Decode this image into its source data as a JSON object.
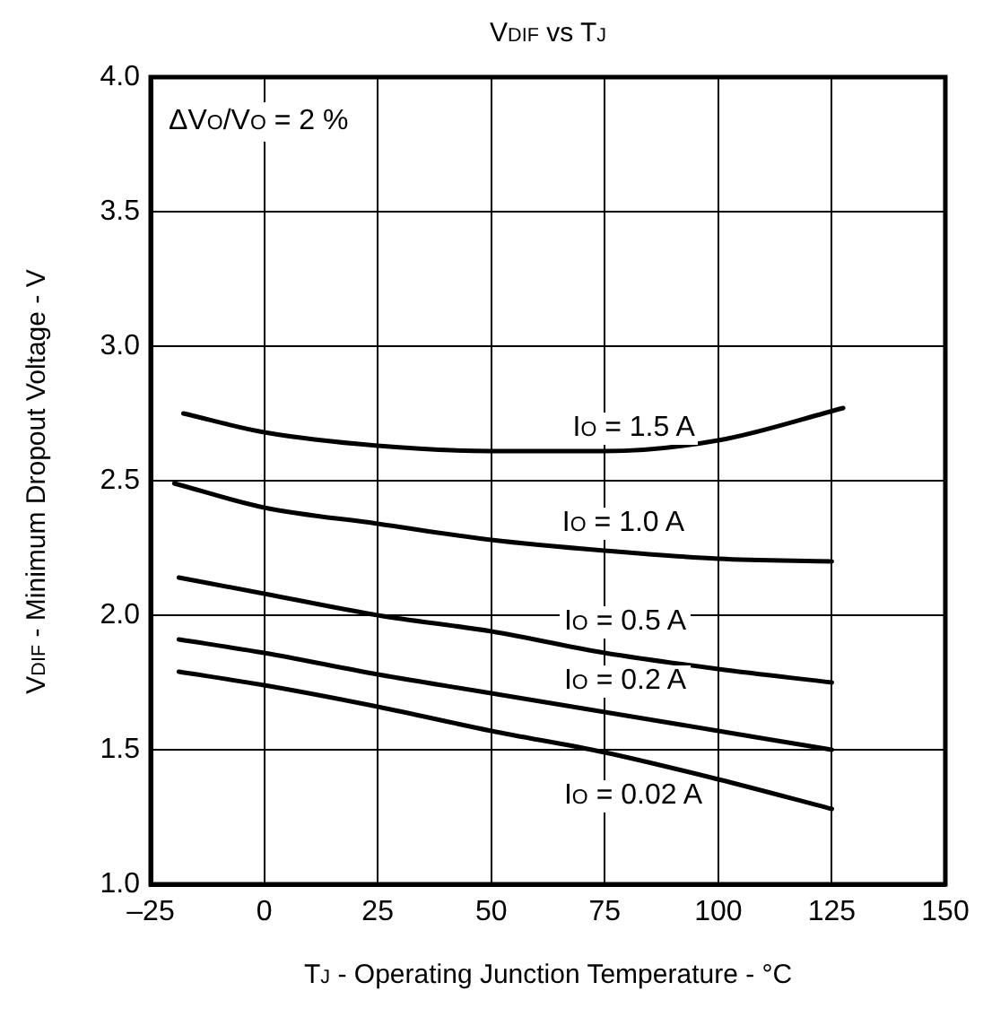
{
  "chart_data": {
    "type": "line",
    "title": "V$_{DIF}$ vs T$_{J}$",
    "xlabel": "T$_{J}$ - Operating Junction Temperature - °C",
    "ylabel": "V$_{DIF}$ - Minimum Dropout Voltage - V",
    "annotations": [
      "ΔV$_{O}$/V$_{O}$ = 2 %"
    ],
    "xlim": [
      -25,
      150
    ],
    "xticks": [
      {
        "value": -25,
        "label": "–25"
      },
      0,
      25,
      50,
      75,
      100,
      125,
      150
    ],
    "ylim": [
      1,
      4
    ],
    "yticks": [
      {
        "value": 1,
        "label": "1.0"
      },
      {
        "value": 1.5,
        "label": "1.5"
      },
      {
        "value": 2,
        "label": "2.0"
      },
      {
        "value": 2.5,
        "label": "2.5"
      },
      {
        "value": 3,
        "label": "3.0"
      },
      {
        "value": 3.5,
        "label": "3.5"
      },
      {
        "value": 4,
        "label": "4.0"
      }
    ],
    "grid": true,
    "legend": false,
    "marker": "none",
    "line_style": "solid",
    "series": [
      {
        "name": "I$_{O}$ = 1.5 A",
        "color": "#000000",
        "x": [
          -17.8,
          0,
          25,
          50,
          75,
          100,
          127.5
        ],
        "values": [
          2.75,
          2.68,
          2.63,
          2.61,
          2.61,
          2.65,
          2.77
        ]
      },
      {
        "name": "I$_{O}$ = 1.0 A",
        "color": "#000000",
        "x": [
          -19.8,
          0,
          25,
          50,
          75,
          100,
          125
        ],
        "values": [
          2.49,
          2.4,
          2.34,
          2.28,
          2.24,
          2.21,
          2.2
        ]
      },
      {
        "name": "I$_{O}$ = 0.5 A",
        "color": "#000000",
        "x": [
          -18.8,
          0,
          25,
          50,
          75,
          100,
          125
        ],
        "values": [
          2.14,
          2.08,
          2.0,
          1.94,
          1.86,
          1.8,
          1.75
        ]
      },
      {
        "name": "I$_{O}$ = 0.2 A",
        "color": "#000000",
        "x": [
          -18.8,
          0,
          25,
          50,
          75,
          100,
          125
        ],
        "values": [
          1.91,
          1.86,
          1.78,
          1.71,
          1.64,
          1.57,
          1.5
        ]
      },
      {
        "name": "I$_{O}$ = 0.02 A",
        "color": "#000000",
        "x": [
          -18.8,
          0,
          25,
          50,
          75,
          100,
          125
        ],
        "values": [
          1.79,
          1.74,
          1.66,
          1.57,
          1.49,
          1.39,
          1.28
        ]
      }
    ]
  }
}
